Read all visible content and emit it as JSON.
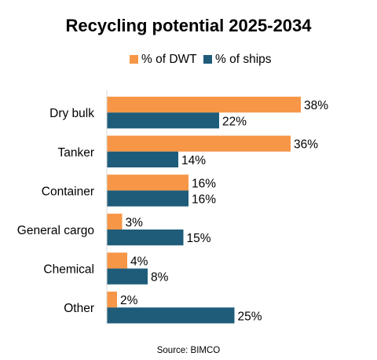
{
  "chart_data": {
    "type": "bar",
    "orientation": "horizontal",
    "title": "Recycling potential 2025-2034",
    "source": "Source: BIMCO",
    "legend_position": "top",
    "categories": [
      "Dry bulk",
      "Tanker",
      "Container",
      "General cargo",
      "Chemical",
      "Other"
    ],
    "series": [
      {
        "name": "% of DWT",
        "color": "#F79646",
        "values": [
          38,
          36,
          16,
          3,
          4,
          2
        ],
        "labels": [
          "38%",
          "36%",
          "16%",
          "3%",
          "4%",
          "2%"
        ]
      },
      {
        "name": "% of ships",
        "color": "#1F5C7A",
        "values": [
          22,
          14,
          16,
          15,
          8,
          25
        ],
        "labels": [
          "22%",
          "14%",
          "16%",
          "15%",
          "8%",
          "25%"
        ]
      }
    ],
    "xlim": [
      0,
      38
    ],
    "grid": false
  }
}
